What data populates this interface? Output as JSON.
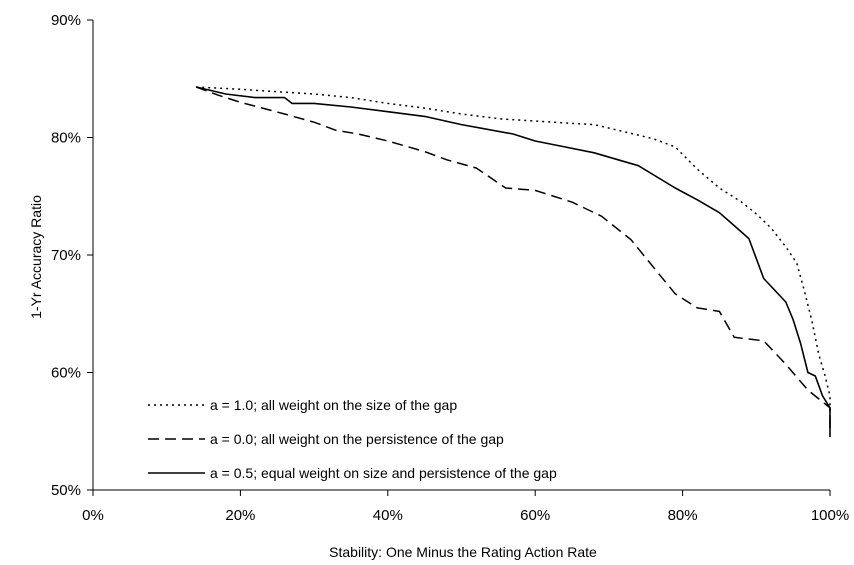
{
  "chart_data": {
    "type": "line",
    "title": "",
    "xlabel": "Stability:  One Minus the Rating Action Rate",
    "ylabel": "1-Yr Accuracy Ratio",
    "xlim": [
      0,
      1
    ],
    "ylim": [
      0.5,
      0.9
    ],
    "x_ticks": [
      0,
      0.2,
      0.4,
      0.6,
      0.8,
      1.0
    ],
    "x_tick_labels": [
      "0%",
      "20%",
      "40%",
      "60%",
      "80%",
      "100%"
    ],
    "y_ticks": [
      0.5,
      0.6,
      0.7,
      0.8,
      0.9
    ],
    "y_tick_labels": [
      "50%",
      "60%",
      "70%",
      "80%",
      "90%"
    ],
    "grid": false,
    "legend_position": "bottom-left",
    "series": [
      {
        "name": "a = 1.0; all weight on the size of the gap",
        "style": "dotted",
        "x": [
          0.14,
          0.2,
          0.25,
          0.3,
          0.35,
          0.4,
          0.45,
          0.5,
          0.55,
          0.6,
          0.65,
          0.68,
          0.72,
          0.76,
          0.79,
          0.82,
          0.85,
          0.88,
          0.9,
          0.92,
          0.94,
          0.955,
          0.965,
          0.975,
          0.985,
          0.993,
          1.0,
          1.0
        ],
        "values": [
          0.843,
          0.841,
          0.839,
          0.837,
          0.834,
          0.829,
          0.825,
          0.82,
          0.816,
          0.814,
          0.812,
          0.811,
          0.805,
          0.799,
          0.792,
          0.773,
          0.757,
          0.745,
          0.735,
          0.723,
          0.707,
          0.693,
          0.67,
          0.645,
          0.615,
          0.598,
          0.58,
          0.553
        ]
      },
      {
        "name": "a = 0.0; all weight on the persistence of the gap",
        "style": "dashed",
        "x": [
          0.14,
          0.17,
          0.2,
          0.23,
          0.26,
          0.3,
          0.33,
          0.36,
          0.4,
          0.45,
          0.48,
          0.52,
          0.56,
          0.6,
          0.65,
          0.69,
          0.73,
          0.76,
          0.79,
          0.82,
          0.85,
          0.87,
          0.91,
          0.94,
          0.97,
          1.0,
          1.0
        ],
        "values": [
          0.843,
          0.836,
          0.83,
          0.825,
          0.82,
          0.813,
          0.806,
          0.803,
          0.797,
          0.788,
          0.781,
          0.774,
          0.757,
          0.755,
          0.745,
          0.733,
          0.713,
          0.69,
          0.667,
          0.655,
          0.652,
          0.63,
          0.627,
          0.607,
          0.585,
          0.57,
          0.548
        ]
      },
      {
        "name": "a = 0.5; equal weight on size and persistence of the gap",
        "style": "solid",
        "x": [
          0.14,
          0.18,
          0.22,
          0.26,
          0.27,
          0.3,
          0.35,
          0.4,
          0.45,
          0.5,
          0.57,
          0.6,
          0.64,
          0.68,
          0.74,
          0.79,
          0.82,
          0.85,
          0.87,
          0.89,
          0.91,
          0.94,
          0.95,
          0.96,
          0.97,
          0.98,
          0.99,
          1.0,
          1.0
        ],
        "values": [
          0.843,
          0.837,
          0.834,
          0.834,
          0.829,
          0.829,
          0.826,
          0.822,
          0.818,
          0.811,
          0.803,
          0.797,
          0.792,
          0.787,
          0.776,
          0.757,
          0.747,
          0.736,
          0.725,
          0.714,
          0.68,
          0.66,
          0.645,
          0.625,
          0.6,
          0.597,
          0.58,
          0.57,
          0.545
        ]
      }
    ]
  }
}
